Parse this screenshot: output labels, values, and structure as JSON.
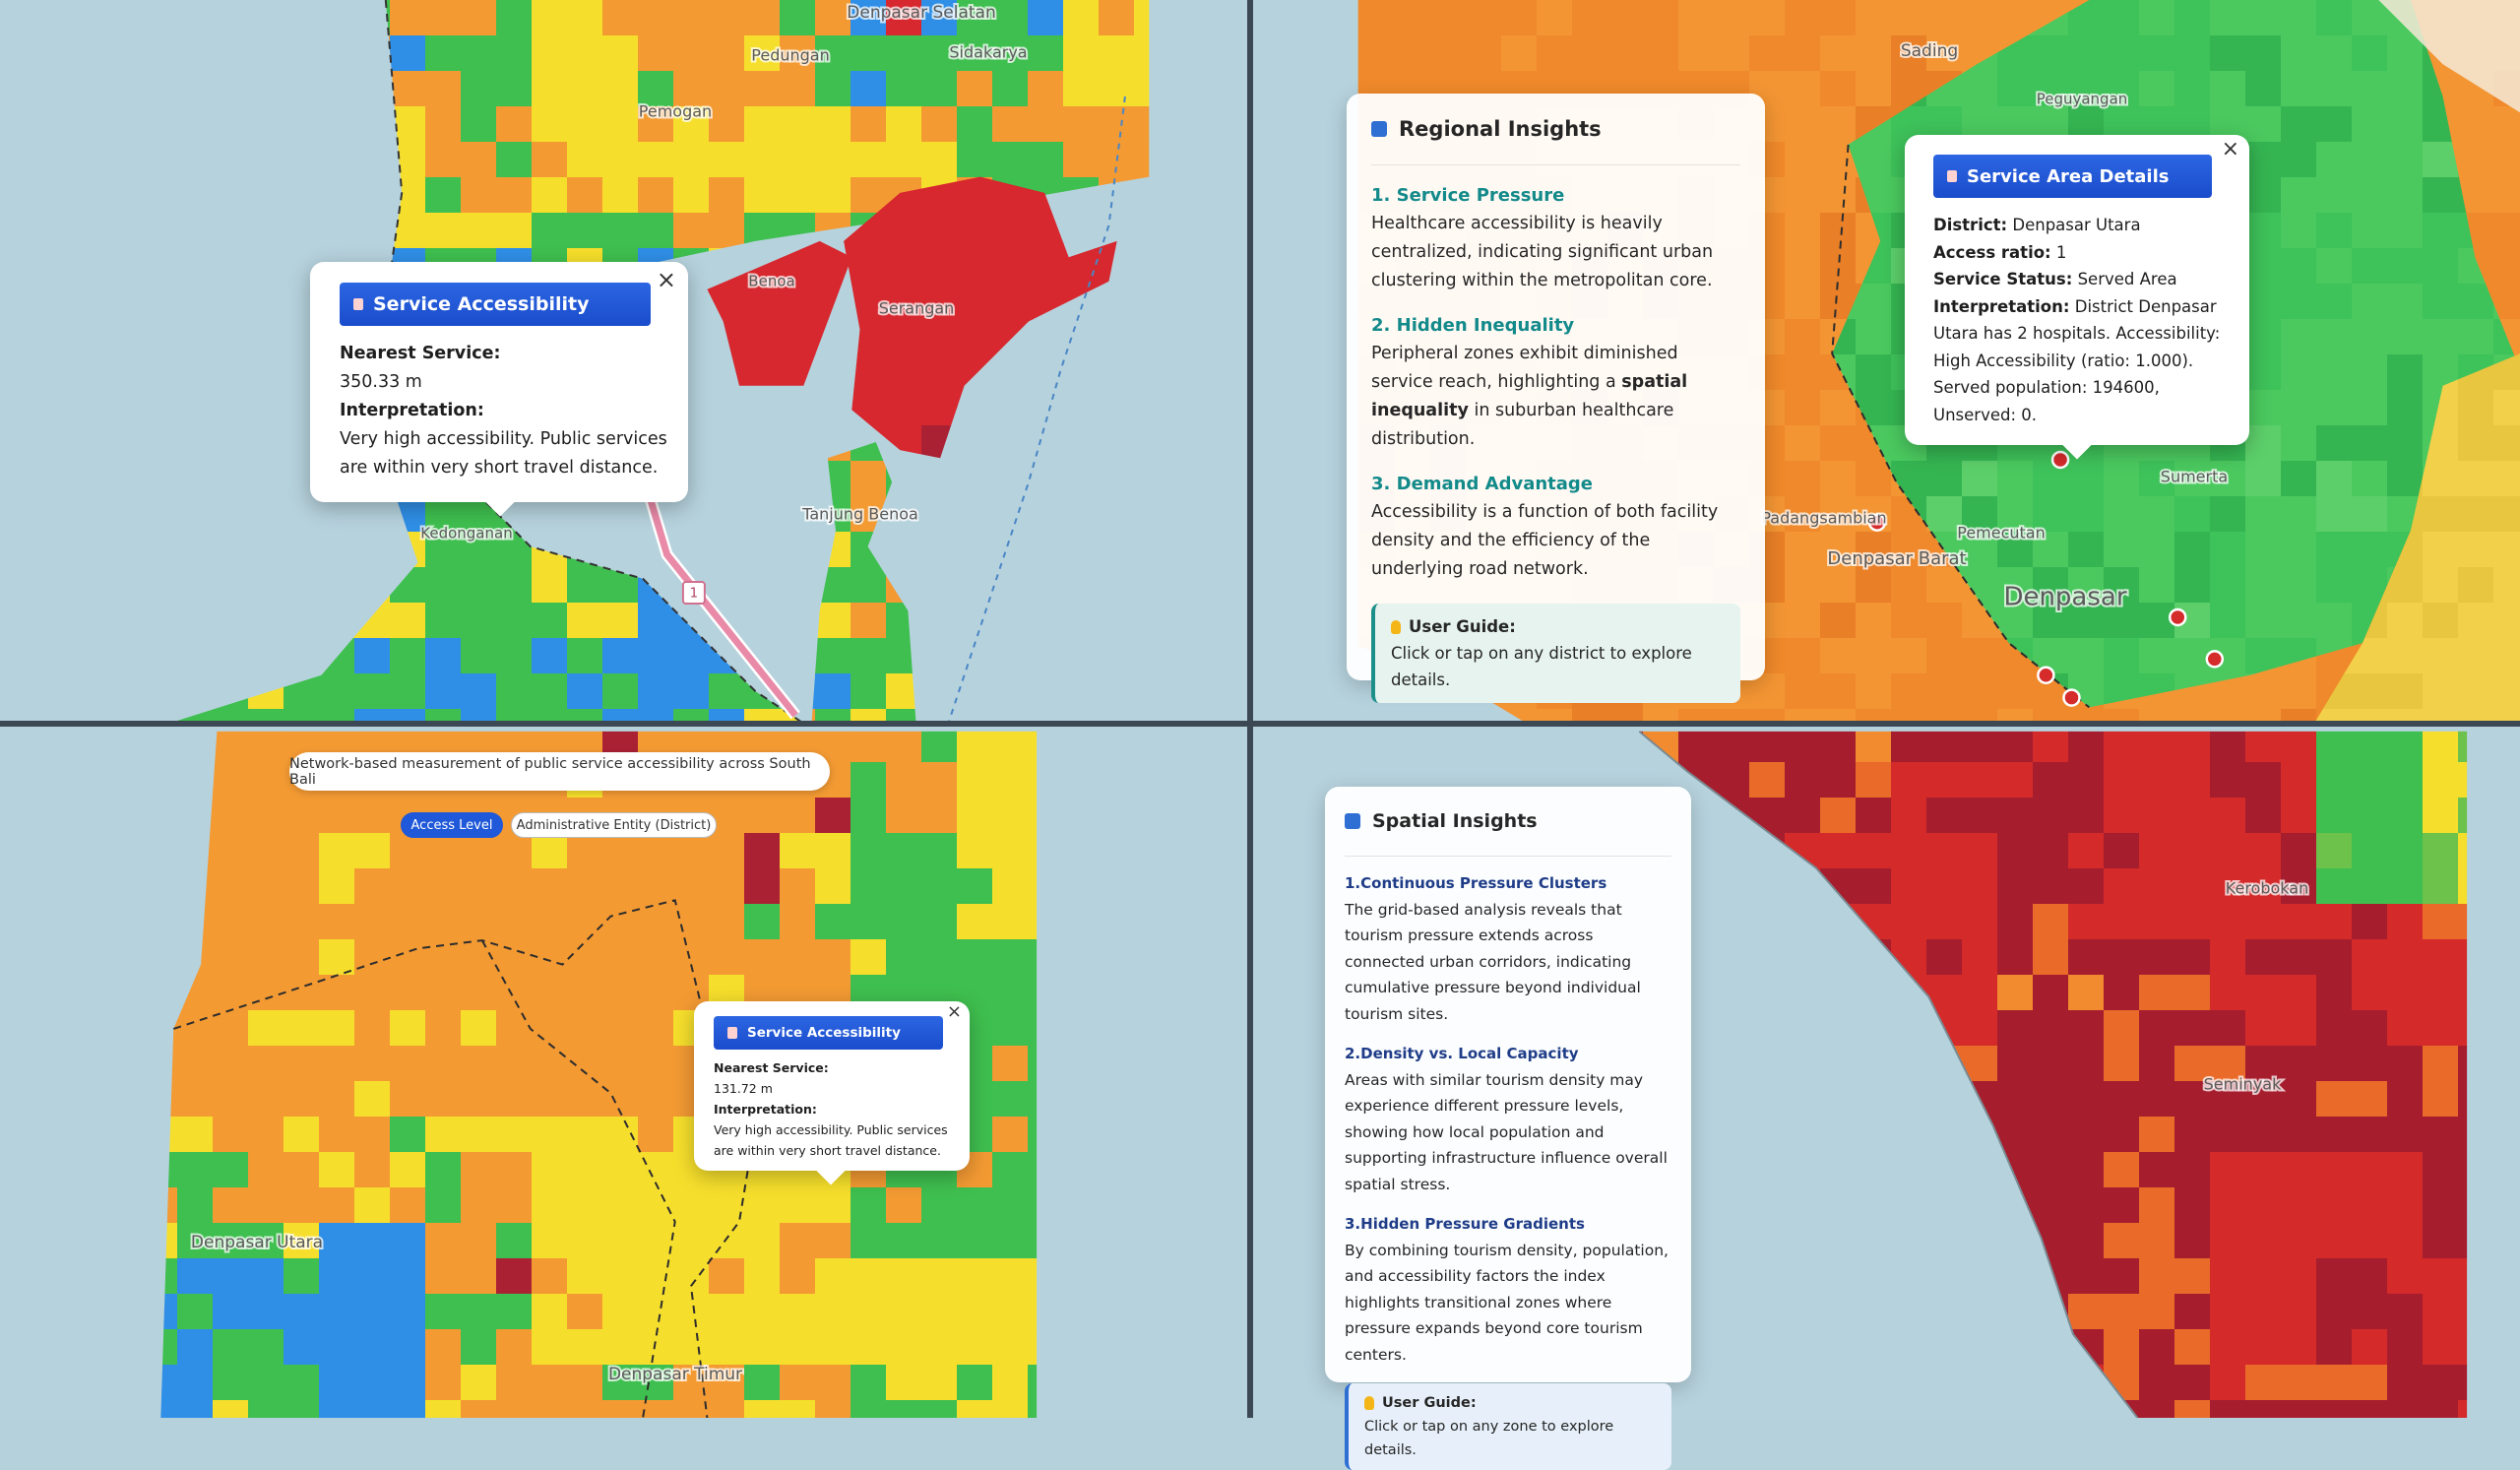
{
  "top_left": {
    "map_labels": [
      "Denpasar Selatan",
      "Pedungan",
      "Sidakarya",
      "Pemogan",
      "Benoa",
      "Serangan",
      "Tanjung Benoa",
      "Kedonganan"
    ],
    "road_shield": "1",
    "popup": {
      "title": "Service Accessibility",
      "close": "×",
      "fields": [
        {
          "label": "Nearest Service:",
          "value": "350.33 m"
        },
        {
          "label": "Interpretation:",
          "value": "Very high accessibility. Public services are within very short travel distance."
        }
      ]
    }
  },
  "top_right": {
    "map_labels": [
      "Sading",
      "Peguyangan",
      "Padangsambian",
      "Pemecutan",
      "Denpasar Barat",
      "Sumerta",
      "Denpasar"
    ],
    "insights": {
      "title": "Regional Insights",
      "items": [
        {
          "heading": "1. Service Pressure",
          "body": [
            "Healthcare accessibility is heavily centralized, indicating significant urban clustering within the metropolitan core."
          ]
        },
        {
          "heading": "2. Hidden Inequality",
          "body": [
            "Peripheral zones exhibit diminished service reach, highlighting a ",
            "spatial inequality",
            " in suburban healthcare distribution."
          ]
        },
        {
          "heading": "3. Demand Advantage",
          "body": [
            "Accessibility is a function of both facility density and the efficiency of the underlying road network."
          ]
        }
      ],
      "guide": {
        "title": "User Guide:",
        "text": "Click or tap on any district to explore details."
      }
    },
    "popup": {
      "title": "Service Area Details",
      "close": "×",
      "fields": [
        {
          "label": "District:",
          "value": "Denpasar Utara"
        },
        {
          "label": "Access ratio:",
          "value": "1"
        },
        {
          "label": "Service Status:",
          "value": "Served Area"
        },
        {
          "label": "Interpretation:",
          "value": "District Denpasar Utara has 2 hospitals. Accessibility: High Accessibility (ratio: 1.000). Served population: 194600, Unserved: 0."
        }
      ]
    }
  },
  "bottom_left": {
    "caption": "Network-based measurement of public service accessibility across South Bali",
    "toggles": [
      "Access Level",
      "Administrative Entity (District)"
    ],
    "map_labels": [
      "Denpasar Utara",
      "Denpasar Timur"
    ],
    "popup": {
      "title": "Service Accessibility",
      "close": "×",
      "fields": [
        {
          "label": "Nearest Service:",
          "value": "131.72 m"
        },
        {
          "label": "Interpretation:",
          "value": "Very high accessibility. Public services are within very short travel distance."
        }
      ]
    }
  },
  "bottom_right": {
    "map_labels": [
      "Kerobokan",
      "Seminyak"
    ],
    "insights": {
      "title": "Spatial Insights",
      "items": [
        {
          "heading": "1.Continuous Pressure Clusters",
          "body": [
            "The grid-based analysis reveals that tourism pressure extends across connected urban corridors, indicating cumulative pressure beyond individual tourism sites."
          ]
        },
        {
          "heading": "2.Density vs. Local Capacity",
          "body": [
            "Areas with similar tourism density may experience different pressure levels, showing how local population and supporting infrastructure influence overall spatial stress."
          ]
        },
        {
          "heading": "3.Hidden Pressure Gradients",
          "body": [
            "By combining tourism density, population, and accessibility factors the index highlights transitional zones where pressure expands beyond core tourism centers."
          ]
        }
      ],
      "guide": {
        "title": "User Guide:",
        "text": "Click or tap on any zone to explore details."
      }
    }
  }
}
